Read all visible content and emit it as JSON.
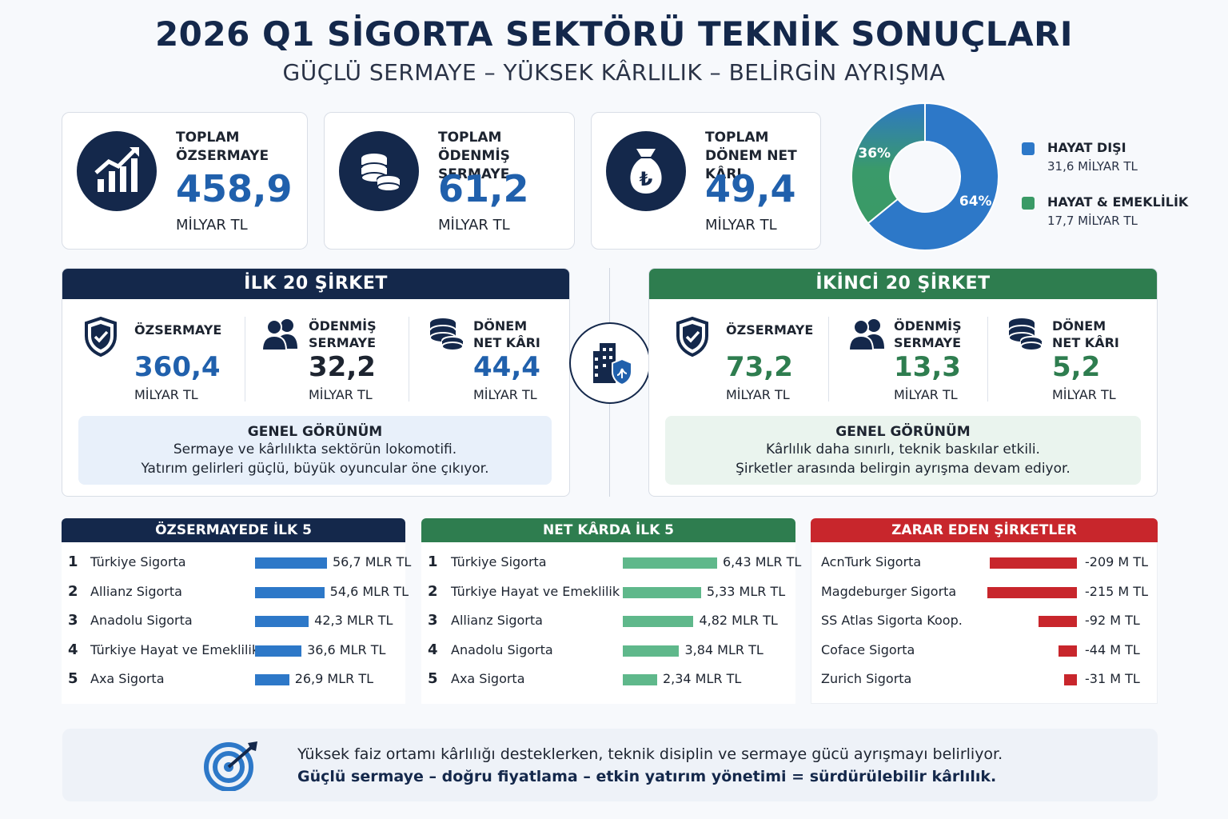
{
  "header": {
    "title": "2026 Q1 SİGORTA SEKTÖRÜ TEKNİK SONUÇLARI",
    "subtitle": "GÜÇLÜ SERMAYE – YÜKSEK KÂRLILIK – BELİRGİN AYRIŞMA"
  },
  "kpis": [
    {
      "label1": "TOPLAM",
      "label2": "ÖZSERMAYE",
      "value": "458,9",
      "unit": "MİLYAR TL",
      "icon": "growth-chart-icon"
    },
    {
      "label1": "TOPLAM",
      "label2": "ÖDENMİŞ SERMAYE",
      "value": "61,2",
      "unit": "MİLYAR TL",
      "icon": "coins-icon"
    },
    {
      "label1": "TOPLAM",
      "label2": "DÖNEM NET KÂRI",
      "value": "49,4",
      "unit": "MİLYAR TL",
      "icon": "money-bag-icon"
    }
  ],
  "colors": {
    "navy": "#14284b",
    "blue": "#2d78c8",
    "value_blue": "#2060ac",
    "green": "#2e7d4f",
    "bar_green": "#5fb88b",
    "red": "#c8262c"
  },
  "top20": {
    "title": "İLK 20 ŞİRKET",
    "metrics": [
      {
        "label": "ÖZSERMAYE",
        "value": "360,4",
        "unit": "MİLYAR TL",
        "icon": "shield-check-icon"
      },
      {
        "label": "ÖDENMİŞ SERMAYE",
        "value": "32,2",
        "unit": "MİLYAR TL",
        "icon": "people-icon"
      },
      {
        "label": "DÖNEM NET KÂRI",
        "value": "44,4",
        "unit": "MİLYAR TL",
        "icon": "coins-icon"
      }
    ],
    "summary_title": "GENEL GÖRÜNÜM",
    "summary_lines": [
      "Sermaye ve kârlılıkta sektörün lokomotifi.",
      "Yatırım gelirleri güçlü, büyük oyuncular öne çıkıyor."
    ]
  },
  "second20": {
    "title": "İKİNCİ 20 ŞİRKET",
    "metrics": [
      {
        "label": "ÖZSERMAYE",
        "value": "73,2",
        "unit": "MİLYAR TL",
        "icon": "shield-check-icon"
      },
      {
        "label": "ÖDENMİŞ SERMAYE",
        "value": "13,3",
        "unit": "MİLYAR TL",
        "icon": "people-icon"
      },
      {
        "label": "DÖNEM NET KÂRI",
        "value": "5,2",
        "unit": "MİLYAR TL",
        "icon": "coins-icon"
      }
    ],
    "summary_title": "GENEL GÖRÜNÜM",
    "summary_lines": [
      "Kârlılık daha sınırlı, teknik baskılar etkili.",
      "Şirketler arasında belirgin ayrışma devam ediyor."
    ]
  },
  "footer": {
    "line1": "Yüksek faiz ortamı kârlılığı desteklerken, teknik disiplin ve sermaye gücü ayrışmayı belirliyor.",
    "line2": "Güçlü sermaye – doğru fiyatlama – etkin yatırım yönetimi = sürdürülebilir kârlılık.",
    "icon": "target-arrow-icon"
  },
  "chart_data": [
    {
      "type": "pie",
      "labels": [
        "HAYAT DIŞI",
        "HAYAT & EMEKLİLİK"
      ],
      "values": [
        31.6,
        17.7
      ],
      "value_labels": [
        "31,6 MİLYAR TL",
        "17,7 MİLYAR TL"
      ],
      "percent_labels": [
        "64%",
        "36%"
      ],
      "colors": [
        "#2d78c8",
        "#3a9a66"
      ],
      "legend": "right"
    },
    {
      "type": "bar",
      "title": "ÖZSERMAYEDE İLK 5",
      "categories": [
        "Türkiye Sigorta",
        "Allianz Sigorta",
        "Anadolu Sigorta",
        "Türkiye Hayat ve Emeklilik",
        "Axa Sigorta"
      ],
      "ranks": [
        "1",
        "2",
        "3",
        "4",
        "5"
      ],
      "values": [
        56.7,
        54.6,
        42.3,
        36.6,
        26.9
      ],
      "value_labels": [
        "56,7 MLR TL",
        "54,6 MLR TL",
        "42,3 MLR TL",
        "36,6 MLR TL",
        "26,9 MLR TL"
      ],
      "color": "#2d78c8"
    },
    {
      "type": "bar",
      "title": "NET KÂRDA İLK 5",
      "categories": [
        "Türkiye Sigorta",
        "Türkiye Hayat ve Emeklilik",
        "Allianz Sigorta",
        "Anadolu Sigorta",
        "Axa Sigorta"
      ],
      "ranks": [
        "1",
        "2",
        "3",
        "4",
        "5"
      ],
      "values": [
        6.43,
        5.33,
        4.82,
        3.84,
        2.34
      ],
      "value_labels": [
        "6,43 MLR TL",
        "5,33 MLR TL",
        "4,82 MLR TL",
        "3,84 MLR TL",
        "2,34 MLR TL"
      ],
      "color": "#5fb88b"
    },
    {
      "type": "bar",
      "title": "ZARAR EDEN ŞİRKETLER",
      "categories": [
        "AcnTurk Sigorta",
        "Magdeburger Sigorta",
        "SS Atlas Sigorta Koop.",
        "Coface Sigorta",
        "Zurich Sigorta"
      ],
      "values": [
        -209,
        -215,
        -92,
        -44,
        -31
      ],
      "value_labels": [
        "-209 M TL",
        "-215 M TL",
        "-92 M TL",
        "-44 M TL",
        "-31 M TL"
      ],
      "color": "#c8262c"
    }
  ]
}
